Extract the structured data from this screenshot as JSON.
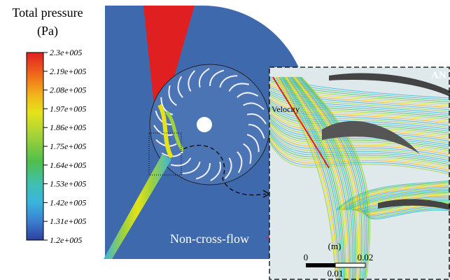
{
  "legend": {
    "title": "Total pressure",
    "unit": "(Pa)",
    "labels": [
      "2.3e+005",
      "2.19e+005",
      "2.08e+005",
      "1.97e+005",
      "1.86e+005",
      "1.75e+005",
      "1.64e+005",
      "1.53e+005",
      "1.42e+005",
      "1.31e+005",
      "1.2e+005"
    ]
  },
  "main": {
    "label": "Non-cross-flow"
  },
  "inset": {
    "label": "Velocity",
    "logo": "AN",
    "scale": {
      "unit": "(m)",
      "left": "0",
      "right": "0.02",
      "middle": "0.01"
    }
  }
}
